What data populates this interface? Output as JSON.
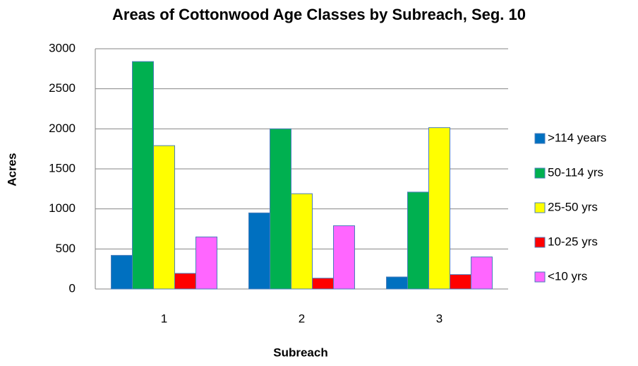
{
  "chart_data": {
    "type": "bar",
    "title": "Areas of Cottonwood Age Classes by Subreach, Seg. 10",
    "x_label": "Subreach",
    "y_label": "Acres",
    "categories": [
      "1",
      "2",
      "3"
    ],
    "series": [
      {
        "name": ">114 years",
        "color": "#0070c0",
        "values": [
          420,
          950,
          150
        ]
      },
      {
        "name": "50-114 yrs",
        "color": "#00b050",
        "values": [
          2840,
          2000,
          1210
        ]
      },
      {
        "name": "25-50 yrs",
        "color": "#ffff00",
        "values": [
          1790,
          1190,
          2015
        ]
      },
      {
        "name": "10-25 yrs",
        "color": "#ff0000",
        "values": [
          195,
          135,
          180
        ]
      },
      {
        "name": "<10 yrs",
        "color": "#ff66ff",
        "values": [
          650,
          790,
          400
        ]
      }
    ],
    "ylim": [
      0,
      3000
    ],
    "yticks": [
      0,
      500,
      1000,
      1500,
      2000,
      2500,
      3000
    ],
    "grid": true,
    "legend": "right"
  }
}
